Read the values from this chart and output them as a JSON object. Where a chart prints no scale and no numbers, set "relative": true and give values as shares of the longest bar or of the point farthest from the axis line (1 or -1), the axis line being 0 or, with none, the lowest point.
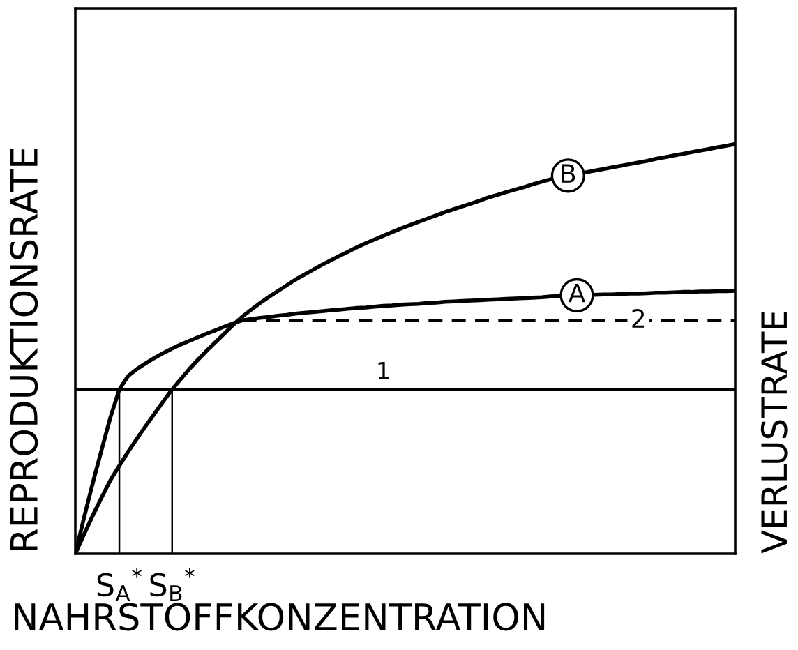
{
  "chart_data": {
    "type": "line",
    "relative": true,
    "xlabel": "NAHRSTOFFKONZENTRATION",
    "ylabel": "REPRODUKTIONSRATE",
    "y2label": "VERLUSTRATE",
    "categories": [
      null,
      null,
      null,
      null,
      null,
      "S$_{A}$$^{*}$",
      null,
      null,
      null,
      null,
      null,
      "S$_{B}$$^{*}$",
      null,
      null,
      null,
      null,
      null,
      null,
      null,
      null,
      null,
      null,
      null,
      null,
      null,
      null,
      null,
      null,
      null,
      null,
      null,
      null,
      null,
      null,
      null,
      null,
      null,
      null,
      null,
      null,
      null,
      null,
      null,
      null,
      null,
      null,
      null,
      null,
      null,
      null,
      null,
      null,
      null,
      null,
      null,
      null,
      null,
      null,
      null,
      null,
      null,
      null,
      null,
      null,
      null,
      null,
      null,
      null,
      null,
      null,
      null,
      null,
      null,
      null,
      null,
      null
    ],
    "series": [
      {
        "name": "A",
        "color": "#000000",
        "values": [
          0,
          0.089,
          0.174,
          0.255,
          0.334,
          0.401,
          0.434,
          0.451,
          0.465,
          0.478,
          0.49,
          0.501,
          0.511,
          0.52,
          0.529,
          0.538,
          0.546,
          0.555,
          0.563,
          0.57,
          0.573,
          0.576,
          0.578,
          0.581,
          0.583,
          0.586,
          0.588,
          0.59,
          0.592,
          0.594,
          0.596,
          0.598,
          0.6,
          0.601,
          0.603,
          0.605,
          0.606,
          0.608,
          0.609,
          0.61,
          0.612,
          0.613,
          0.615,
          0.616,
          0.617,
          0.618,
          0.619,
          0.62,
          0.621,
          0.622,
          0.623,
          0.624,
          0.625,
          0.626,
          0.628,
          0.629,
          0.63,
          0.631,
          0.631,
          0.632,
          0.633,
          0.633,
          0.634,
          0.635,
          0.635,
          0.636,
          0.637,
          0.637,
          0.638,
          0.639,
          0.639,
          0.64,
          0.64,
          0.641,
          0.641,
          0.642
        ]
      },
      {
        "name": "B",
        "color": "#000000",
        "values": [
          0,
          0.048,
          0.094,
          0.138,
          0.18,
          0.215,
          0.249,
          0.281,
          0.312,
          0.342,
          0.372,
          0.401,
          0.427,
          0.452,
          0.475,
          0.497,
          0.518,
          0.539,
          0.56,
          0.579,
          0.596,
          0.612,
          0.627,
          0.641,
          0.655,
          0.669,
          0.681,
          0.693,
          0.705,
          0.716,
          0.727,
          0.737,
          0.748,
          0.758,
          0.767,
          0.776,
          0.785,
          0.794,
          0.802,
          0.81,
          0.818,
          0.826,
          0.834,
          0.841,
          0.848,
          0.855,
          0.862,
          0.87,
          0.876,
          0.883,
          0.889,
          0.895,
          0.902,
          0.908,
          0.914,
          0.919,
          0.923,
          0.927,
          0.931,
          0.935,
          0.939,
          0.943,
          0.947,
          0.951,
          0.955,
          0.959,
          0.964,
          0.968,
          0.972,
          0.976,
          0.98,
          0.984,
          0.988,
          0.992,
          0.996,
          1
        ]
      },
      {
        "name": "2",
        "color": "#000000",
        "line_style": "dashed",
        "values": [
          null,
          null,
          null,
          null,
          null,
          null,
          null,
          null,
          null,
          null,
          null,
          null,
          null,
          null,
          null,
          null,
          null,
          null,
          null,
          0.569,
          0.569,
          0.569,
          0.569,
          0.569,
          0.569,
          0.569,
          0.569,
          0.569,
          0.569,
          0.569,
          0.569,
          0.569,
          0.569,
          0.569,
          0.569,
          0.569,
          0.569,
          0.569,
          0.569,
          0.569,
          0.569,
          0.569,
          0.569,
          0.569,
          0.569,
          0.569,
          0.569,
          0.569,
          0.569,
          0.569,
          0.569,
          0.569,
          0.569,
          0.569,
          0.569,
          0.569,
          0.569,
          0.569,
          0.569,
          0.569,
          0.569,
          0.569,
          0.569,
          0.569,
          0.569,
          0.569,
          0.569,
          0.569,
          0.569,
          0.569,
          0.569,
          0.569,
          0.569,
          0.569,
          0.569,
          0.569
        ]
      },
      {
        "name": "1",
        "color": "#000000",
        "values": [
          0.401,
          0.401,
          0.401,
          0.401,
          0.401,
          0.401,
          0.401,
          0.401,
          0.401,
          0.401,
          0.401,
          0.401,
          0.401,
          0.401,
          0.401,
          0.401,
          0.401,
          0.401,
          0.401,
          0.401,
          0.401,
          0.401,
          0.401,
          0.401,
          0.401,
          0.401,
          0.401,
          0.401,
          0.401,
          0.401,
          0.401,
          0.401,
          0.401,
          0.401,
          0.401,
          0.401,
          0.401,
          0.401,
          0.401,
          0.401,
          0.401,
          0.401,
          0.401,
          0.401,
          0.401,
          0.401,
          0.401,
          0.401,
          0.401,
          0.401,
          0.401,
          0.401,
          0.401,
          0.401,
          0.401,
          0.401,
          0.401,
          0.401,
          0.401,
          0.401,
          0.401,
          0.401,
          0.401,
          0.401,
          0.401,
          0.401,
          0.401,
          0.401,
          0.401,
          0.401,
          0.401,
          0.401,
          0.401,
          0.401,
          0.401,
          0.401
        ]
      },
      {
        "color": "#000000",
        "x": [
          "S$_{A}$$^{*}$",
          "S$_{A}$$^{*}$"
        ],
        "values": [
          0,
          0.401
        ]
      },
      {
        "color": "#000000",
        "x": [
          "S$_{B}$$^{*}$",
          "S$_{B}$$^{*}$"
        ],
        "values": [
          0,
          0.401
        ]
      }
    ]
  }
}
